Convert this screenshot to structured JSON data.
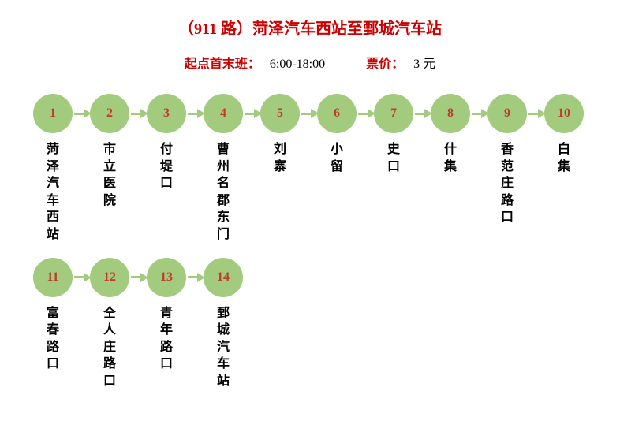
{
  "title": "（911 路）菏泽汽车西站至鄄城汽车站",
  "title_color": "#cc0000",
  "title_fontsize": 20,
  "schedule_label": "起点首末班：",
  "schedule_value": "6:00-18:00",
  "fare_label": "票价：",
  "fare_value": "3 元",
  "info_label_color": "#cc0000",
  "info_value_color": "#000000",
  "info_fontsize": 16,
  "circle_fill": "#a3cb7d",
  "circle_number_color": "#c0392b",
  "arrow_color": "#a3cb7d",
  "label_color": "#000000",
  "label_fontsize": 16,
  "rows": [
    {
      "stops": [
        {
          "num": "1",
          "name": "菏泽汽车西站"
        },
        {
          "num": "2",
          "name": "市立医院"
        },
        {
          "num": "3",
          "name": "付堤口"
        },
        {
          "num": "4",
          "name": "曹州名郡东门"
        },
        {
          "num": "5",
          "name": "刘寨"
        },
        {
          "num": "6",
          "name": "小留"
        },
        {
          "num": "7",
          "name": "史口"
        },
        {
          "num": "8",
          "name": "什集"
        },
        {
          "num": "9",
          "name": "香范庄路口"
        },
        {
          "num": "10",
          "name": "白集"
        }
      ]
    },
    {
      "stops": [
        {
          "num": "11",
          "name": "富春路口"
        },
        {
          "num": "12",
          "name": "仝人庄路口"
        },
        {
          "num": "13",
          "name": "青年路口"
        },
        {
          "num": "14",
          "name": "鄄城汽车站"
        }
      ]
    }
  ]
}
